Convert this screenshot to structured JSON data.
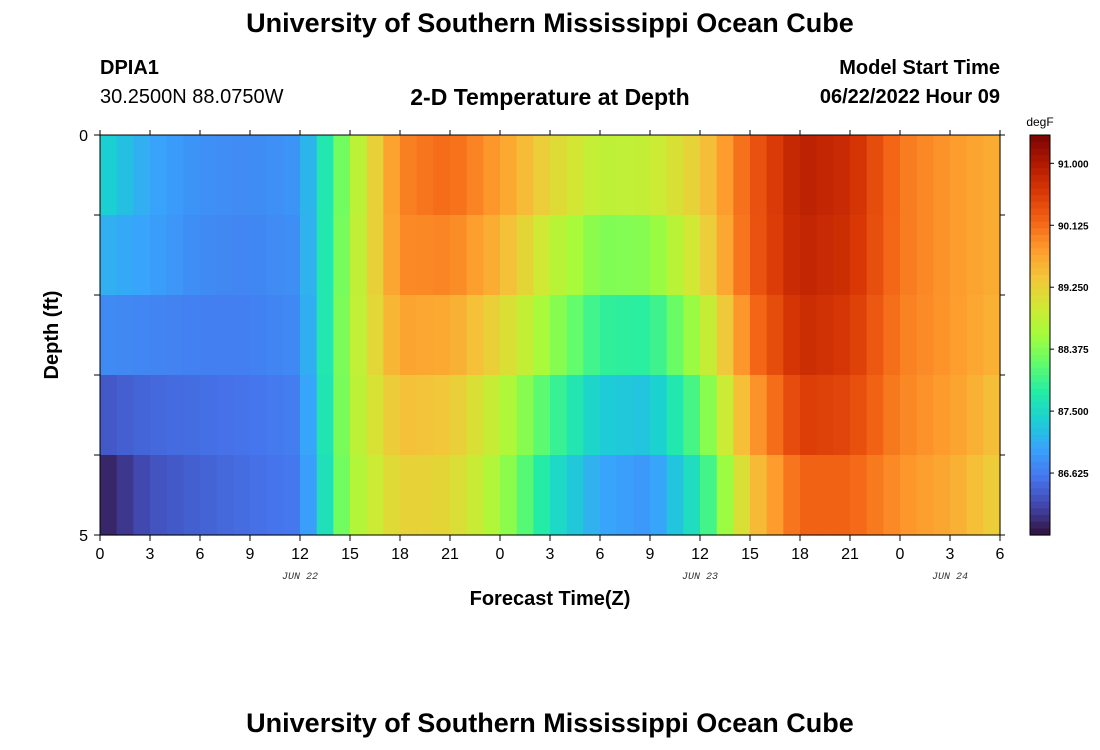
{
  "header": {
    "title": "University of Southern Mississippi Ocean Cube",
    "station": "DPIA1",
    "location": "30.2500N  88.0750W",
    "plot_title": "2-D Temperature at Depth",
    "model_start_label": "Model Start Time",
    "model_start_value": "06/22/2022 Hour 09"
  },
  "footer": {
    "title": "University of Southern Mississippi Ocean Cube"
  },
  "chart_data": {
    "type": "heatmap",
    "title": "2-D Temperature at Depth",
    "xlabel": "Forecast Time(Z)",
    "ylabel": "Depth (ft)",
    "x_hours": [
      0,
      3,
      6,
      9,
      12,
      15,
      18,
      21,
      24,
      27,
      30,
      33,
      36,
      39,
      42,
      45,
      48,
      51,
      54
    ],
    "x_tick_labels": [
      "0",
      "3",
      "6",
      "9",
      "12",
      "15",
      "18",
      "21",
      "0",
      "3",
      "6",
      "9",
      "12",
      "15",
      "18",
      "21",
      "0",
      "3",
      "6"
    ],
    "x_range_hours": [
      0,
      54
    ],
    "date_labels": [
      {
        "label": "JUN 22",
        "hour": 12
      },
      {
        "label": "JUN 23",
        "hour": 36
      },
      {
        "label": "JUN 24",
        "hour": 51
      }
    ],
    "y_range_ft": [
      0,
      5
    ],
    "y_tick_labels": [
      "0",
      "5"
    ],
    "depth_ft": [
      0,
      1,
      2,
      3,
      4,
      5
    ],
    "temperature_degF": [
      [
        87.6,
        86.9,
        86.8,
        86.8,
        86.9,
        88.5,
        89.9,
        90.2,
        89.8,
        89.4,
        89.0,
        89.0,
        89.3,
        90.2,
        90.9,
        90.7,
        90.0,
        89.8,
        89.6
      ],
      [
        87.3,
        87.1,
        86.8,
        86.7,
        86.8,
        88.6,
        90.0,
        90.1,
        89.7,
        89.0,
        88.6,
        88.7,
        89.3,
        90.3,
        90.9,
        90.8,
        90.1,
        89.8,
        89.6
      ],
      [
        86.9,
        86.8,
        86.7,
        86.7,
        86.8,
        88.6,
        89.8,
        89.8,
        89.4,
        88.7,
        88.1,
        88.1,
        88.9,
        90.2,
        90.8,
        90.6,
        90.0,
        89.8,
        89.6
      ],
      [
        86.6,
        86.6,
        86.6,
        86.6,
        86.7,
        88.7,
        89.6,
        89.5,
        89.0,
        88.3,
        87.6,
        87.5,
        88.4,
        89.9,
        90.7,
        90.6,
        90.0,
        89.8,
        89.5
      ],
      [
        86.0,
        86.3,
        86.4,
        86.5,
        86.6,
        88.6,
        89.3,
        89.2,
        88.6,
        87.7,
        87.1,
        87.0,
        87.9,
        89.5,
        90.4,
        90.3,
        89.9,
        89.7,
        89.3
      ],
      [
        85.7,
        86.2,
        86.4,
        86.5,
        86.6,
        88.6,
        89.2,
        89.2,
        88.6,
        87.5,
        86.9,
        86.7,
        87.5,
        89.2,
        90.0,
        90.1,
        89.8,
        89.6,
        89.2
      ]
    ],
    "colorbar": {
      "unit": "degF",
      "ticks": [
        "86.625",
        "87.500",
        "88.375",
        "89.250",
        "90.125",
        "91.000"
      ],
      "tick_values": [
        86.625,
        87.5,
        88.375,
        89.25,
        90.125,
        91.0
      ],
      "range": [
        85.75,
        91.4
      ],
      "colors": [
        "#30123b",
        "#4145ab",
        "#4675ed",
        "#39a2fc",
        "#1bcfd4",
        "#24eca6",
        "#61fc6c",
        "#a4fc3b",
        "#d1e834",
        "#f3c63a",
        "#fe9b2d",
        "#f36315",
        "#d93806",
        "#b11901",
        "#7a0402"
      ]
    }
  }
}
